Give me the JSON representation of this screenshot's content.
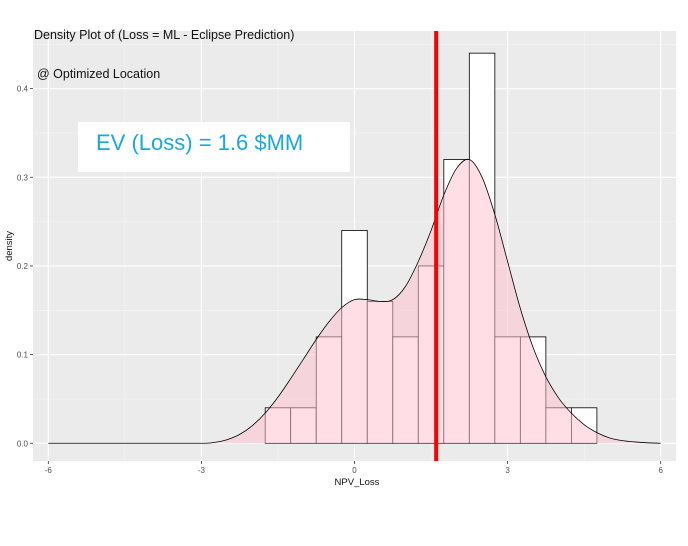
{
  "chart_data": {
    "type": "histogram-density",
    "title": "Density Plot of (Loss = ML - Eclipse Prediction)",
    "subtitle": "@ Optimized Location",
    "xlabel": "NPV_Loss",
    "ylabel": "density",
    "xlim": [
      -6.3,
      6.3
    ],
    "ylim": [
      -0.02,
      0.465
    ],
    "x_ticks": [
      -6,
      -3,
      0,
      3,
      6
    ],
    "x_tick_labels": [
      "-6",
      "-3",
      "0",
      "3",
      "6"
    ],
    "y_ticks": [
      0.0,
      0.1,
      0.2,
      0.3,
      0.4
    ],
    "y_tick_labels": [
      "0.0",
      "0.1",
      "0.2",
      "0.3",
      "0.4"
    ],
    "histogram": {
      "bin_width": 0.5,
      "bin_starts": [
        -1.75,
        -1.25,
        -0.75,
        -0.25,
        0.25,
        0.75,
        1.25,
        1.75,
        2.25,
        2.75,
        3.25,
        3.75,
        4.25
      ],
      "densities": [
        0.04,
        0.04,
        0.12,
        0.24,
        0.16,
        0.12,
        0.2,
        0.32,
        0.44,
        0.12,
        0.12,
        0.04,
        0.04
      ]
    },
    "density_curve": {
      "x": [
        -6,
        -4,
        -3,
        -2.75,
        -2.5,
        -2.25,
        -2,
        -1.75,
        -1.5,
        -1.25,
        -1,
        -0.75,
        -0.5,
        -0.25,
        0,
        0.25,
        0.5,
        0.75,
        1,
        1.25,
        1.5,
        1.75,
        2,
        2.25,
        2.5,
        2.75,
        3,
        3.25,
        3.5,
        3.75,
        4,
        4.25,
        4.5,
        4.75,
        5,
        5.25,
        5.5,
        5.75,
        6
      ],
      "y": [
        0,
        0,
        0,
        0.001,
        0.004,
        0.01,
        0.02,
        0.034,
        0.052,
        0.073,
        0.095,
        0.117,
        0.137,
        0.153,
        0.162,
        0.162,
        0.16,
        0.162,
        0.177,
        0.205,
        0.24,
        0.28,
        0.31,
        0.32,
        0.3,
        0.258,
        0.205,
        0.152,
        0.108,
        0.075,
        0.051,
        0.034,
        0.021,
        0.012,
        0.006,
        0.003,
        0.0015,
        0.0005,
        0
      ]
    },
    "reference_line": {
      "x": 1.6,
      "color": "#ff0000"
    },
    "colors": {
      "panel": "#ebebeb",
      "grid_major": "#ffffff",
      "bar_outline": "#000000",
      "bar_fill": "#ffffff",
      "density_fill": "#ffc0cb",
      "density_line": "#000000"
    }
  },
  "annotation": {
    "text": "EV (Loss) = 1.6 $MM",
    "color": "#1aa7e0"
  }
}
